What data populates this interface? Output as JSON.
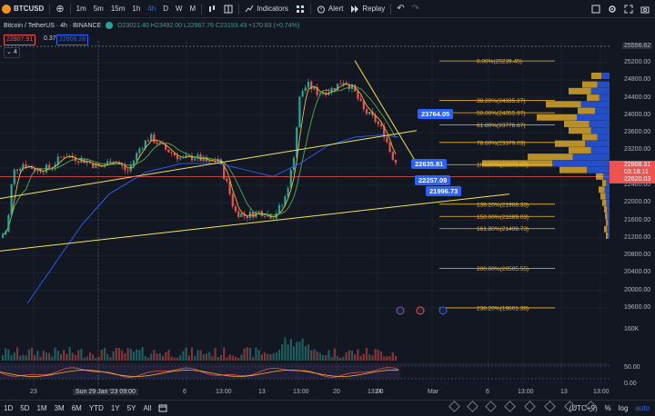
{
  "toolbar": {
    "symbol": "BTCUSD",
    "intervals": [
      "1m",
      "5m",
      "15m",
      "1h",
      "4h",
      "D",
      "W",
      "M"
    ],
    "active_interval": "4h",
    "indicators_label": "Indicators",
    "alert_label": "Alert",
    "replay_label": "Replay"
  },
  "legend": {
    "title": "Bitcoin / TetherUS · 4h · BINANCE",
    "ohlc": "O23021.40 H23492.00 L22967.76 C23193.43 +170.83 (+0.74%)",
    "sell_price": "22807.91",
    "spread": "0.37",
    "buy_price": "22808.28",
    "indicator_count": "4"
  },
  "fib_levels": [
    {
      "label": "0.00%(25239.45)",
      "price": 25239.45
    },
    {
      "label": "38.20%(24335.27)",
      "price": 24335.27
    },
    {
      "label": "50.00%(24055.97)",
      "price": 24055.97
    },
    {
      "label": "61.80%(23776.67)",
      "price": 23776.67
    },
    {
      "label": "78.60%(23379.03)",
      "price": 23379.03
    },
    {
      "label": "100.00%(22872.60)",
      "price": 22872.6
    },
    {
      "label": "138.20%(21968.33)",
      "price": 21968.33
    },
    {
      "label": "150.00%(21689.03)",
      "price": 21689.03
    },
    {
      "label": "161.80%(21409.73)",
      "price": 21409.73
    },
    {
      "label": "200.00%(20505.55)",
      "price": 20505.55
    },
    {
      "label": "238.20%(19601.38)",
      "price": 19601.38
    }
  ],
  "callouts": [
    {
      "name": "callout-23764",
      "text": "23764.05"
    },
    {
      "name": "callout-22635",
      "text": "22635.81"
    },
    {
      "name": "callout-22257",
      "text": "22257.09"
    },
    {
      "name": "callout-21996",
      "text": "21996.73"
    }
  ],
  "price_scale": {
    "top_label": "25556.62",
    "ticks": [
      "25200.00",
      "24800.00",
      "24400.00",
      "24000.00",
      "23600.00",
      "23200.00",
      "22800.00",
      "22400.00",
      "22000.00",
      "21600.00",
      "21200.00",
      "20800.00",
      "20400.00",
      "20000.00",
      "19600.00"
    ],
    "current_price": "22808.31",
    "countdown": "03:18:11",
    "level_tag": "22620.03",
    "volume_label": "160K",
    "osc_labels": [
      "50.00",
      "0.00"
    ]
  },
  "time_axis": {
    "ticks": [
      "23",
      "Sun 29 Jan '23  09:00",
      "6",
      "13:00",
      "13",
      "13:00",
      "20",
      "13:00",
      "24",
      "Mar",
      "6",
      "13:00",
      "13",
      "13:00"
    ]
  },
  "bottom": {
    "ranges": [
      "1D",
      "5D",
      "1M",
      "3M",
      "6M",
      "YTD",
      "1Y",
      "5Y",
      "All"
    ],
    "timezone": "(UTC+9)",
    "percent": "%",
    "log": "log",
    "auto": "auto"
  },
  "colors": {
    "up": "#26a69a",
    "down": "#ef5350",
    "accent": "#2962ff",
    "fib": "#f2b929"
  }
}
